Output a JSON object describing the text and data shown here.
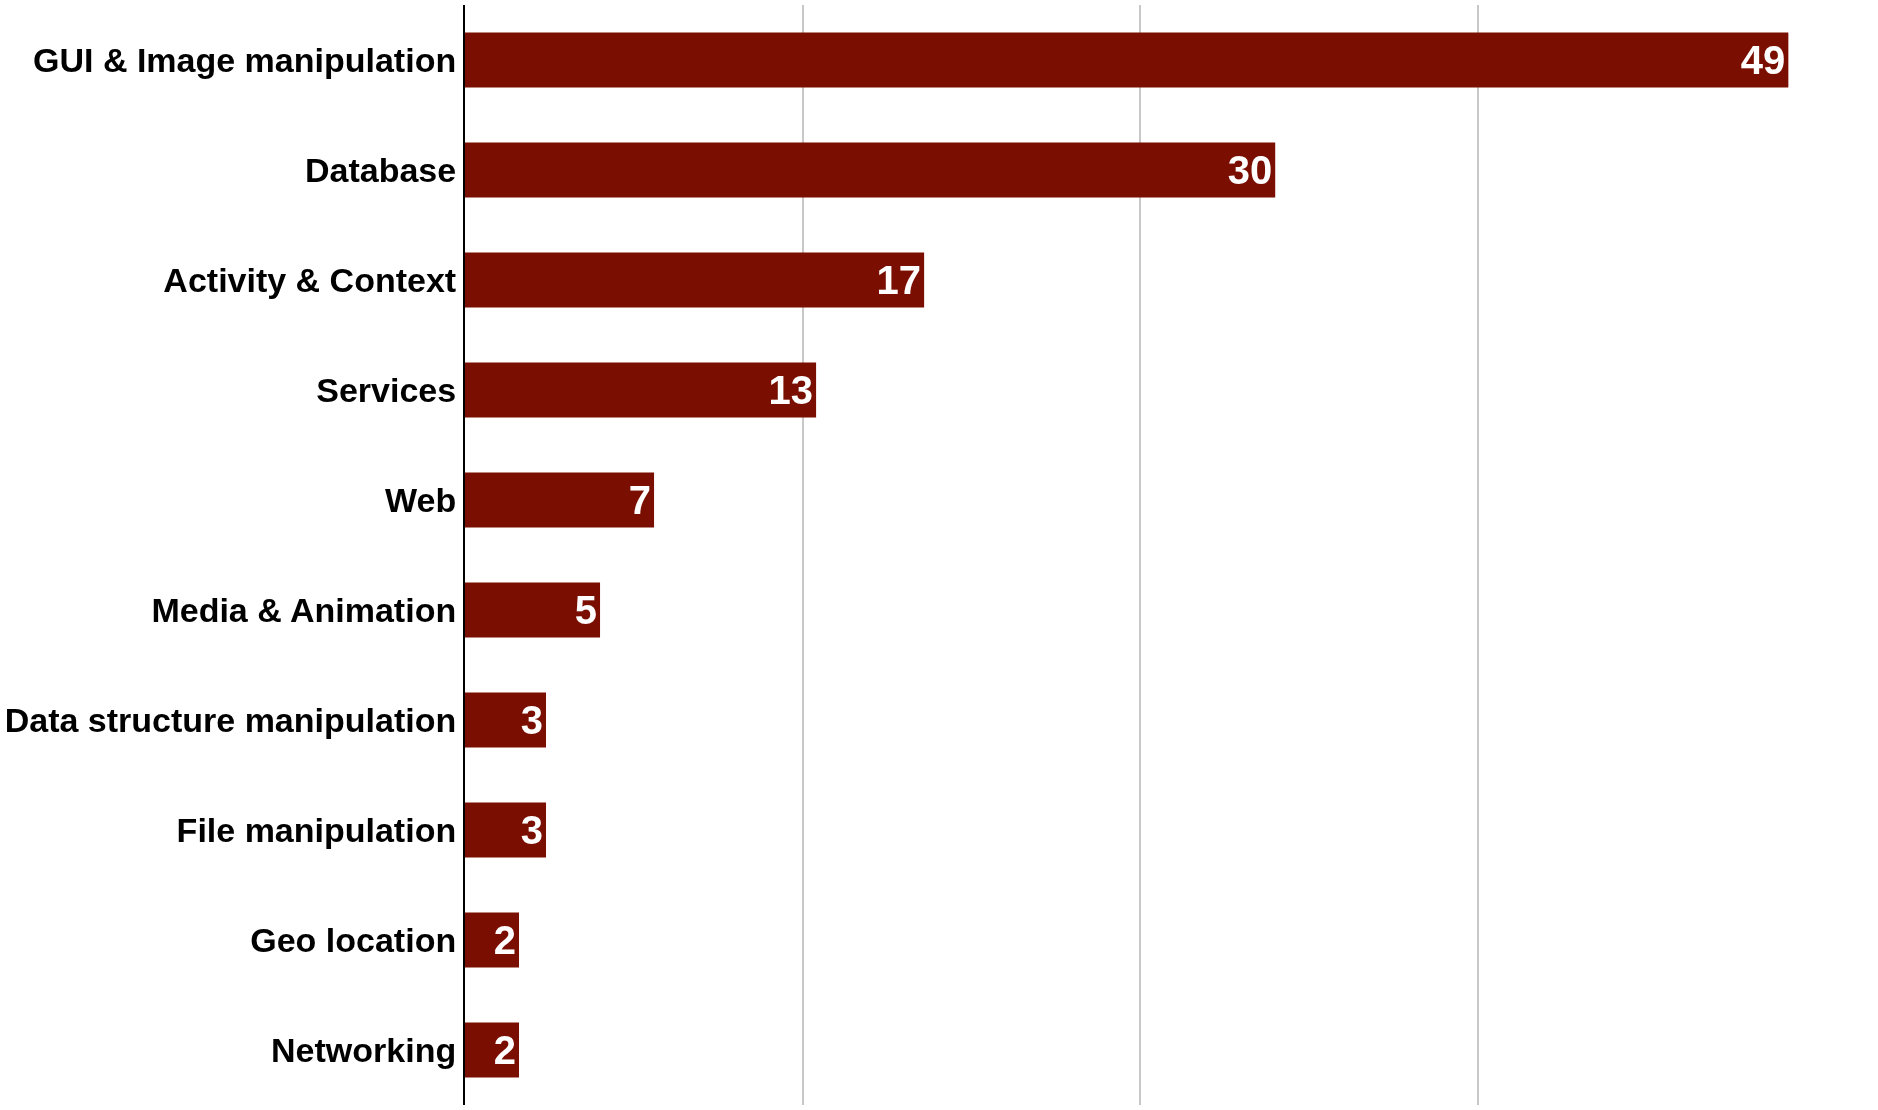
{
  "chart_data": {
    "type": "bar",
    "orientation": "horizontal",
    "categories": [
      "GUI & Image manipulation",
      "Database",
      "Activity & Context",
      "Services",
      "Web",
      "Media & Animation",
      "Data structure manipulation",
      "File manipulation",
      "Geo location",
      "Networking"
    ],
    "values": [
      49,
      30,
      17,
      13,
      7,
      5,
      3,
      3,
      2,
      2
    ],
    "color": "#7a0e00",
    "xticks": [
      {
        "value": 0,
        "label": null
      },
      {
        "value": 12.5,
        "label": null
      },
      {
        "value": 25,
        "label": null
      },
      {
        "value": 37.5,
        "label": null
      }
    ],
    "grid": "x",
    "data_labels": true,
    "tick_labels": "y"
  }
}
